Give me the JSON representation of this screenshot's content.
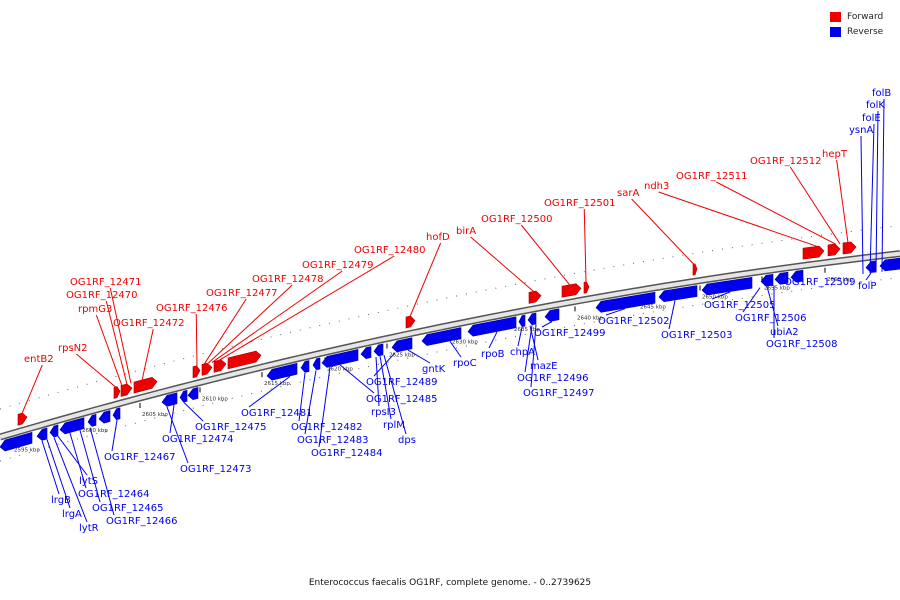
{
  "legend": {
    "forward_label": "Forward",
    "reverse_label": "Reverse",
    "forward_color": "#ee0000",
    "reverse_color": "#0000ee"
  },
  "caption": "Enterococcus faecalis OG1RF, complete genome. - 0..2739625",
  "scale_labels": [
    "2595 kbp",
    "2600 kbp",
    "2605 kbp",
    "2610 kbp",
    "2615 kbp",
    "2620 kbp",
    "2625 kbp",
    "2630 kbp",
    "2635 kbp",
    "2640 kbp",
    "2645 kbp",
    "2650 kbp",
    "2655 kbp",
    "2660 kbp"
  ],
  "forward_labels": [
    "entB2",
    "rpsN2",
    "OG1RF_12472",
    "rpmG3",
    "OG1RF_12470",
    "OG1RF_12471",
    "OG1RF_12476",
    "OG1RF_12477",
    "OG1RF_12478",
    "OG1RF_12479",
    "OG1RF_12480",
    "hofD",
    "birA",
    "OG1RF_12500",
    "OG1RF_12501",
    "sarA",
    "ndh3",
    "OG1RF_12511",
    "OG1RF_12512",
    "hepT"
  ],
  "reverse_labels": [
    "lrgB",
    "lrgA",
    "lytR",
    "lytS",
    "OG1RF_12464",
    "OG1RF_12465",
    "OG1RF_12466",
    "OG1RF_12467",
    "OG1RF_12473",
    "OG1RF_12474",
    "OG1RF_12475",
    "OG1RF_12481",
    "OG1RF_12482",
    "OG1RF_12483",
    "OG1RF_12484",
    "OG1RF_12485",
    "rpsI3",
    "rplM",
    "dps",
    "OG1RF_12489",
    "gntK",
    "rpoC",
    "rpoB",
    "chpA",
    "mazE",
    "OG1RF_12496",
    "OG1RF_12497",
    "OG1RF_12499",
    "OG1RF_12502",
    "OG1RF_12503",
    "OG1RF_12505",
    "OG1RF_12506",
    "ubiA2",
    "OG1RF_12508",
    "OG1RF_12509",
    "folP",
    "ysnA",
    "folE",
    "folK",
    "folB"
  ]
}
